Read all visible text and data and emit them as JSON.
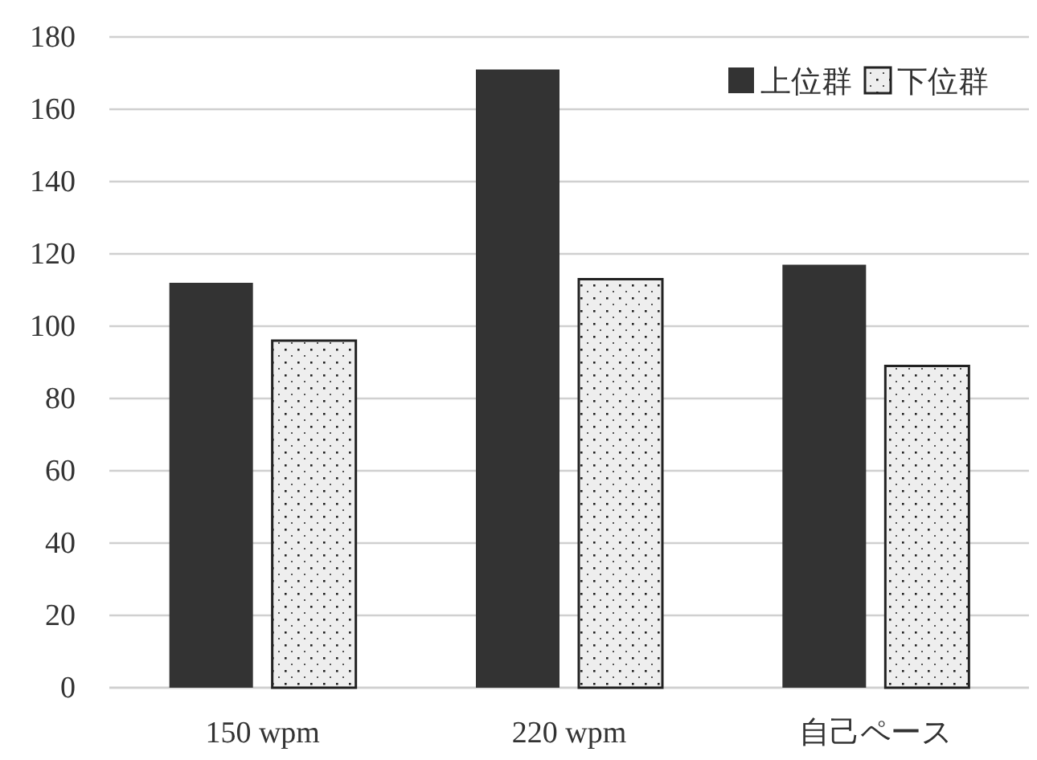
{
  "chart_data": {
    "type": "bar",
    "categories": [
      "150 wpm",
      "220 wpm",
      "自己ペース"
    ],
    "series": [
      {
        "name": "上位群",
        "color": "#333333",
        "values": [
          112,
          171,
          117
        ]
      },
      {
        "name": "下位群",
        "color": "#eeeeee",
        "values": [
          96,
          113,
          89
        ]
      }
    ],
    "ylim": [
      0,
      180
    ],
    "yticks": [
      0,
      20,
      40,
      60,
      80,
      100,
      120,
      140,
      160,
      180
    ],
    "grid": "y",
    "legend": "top right"
  }
}
